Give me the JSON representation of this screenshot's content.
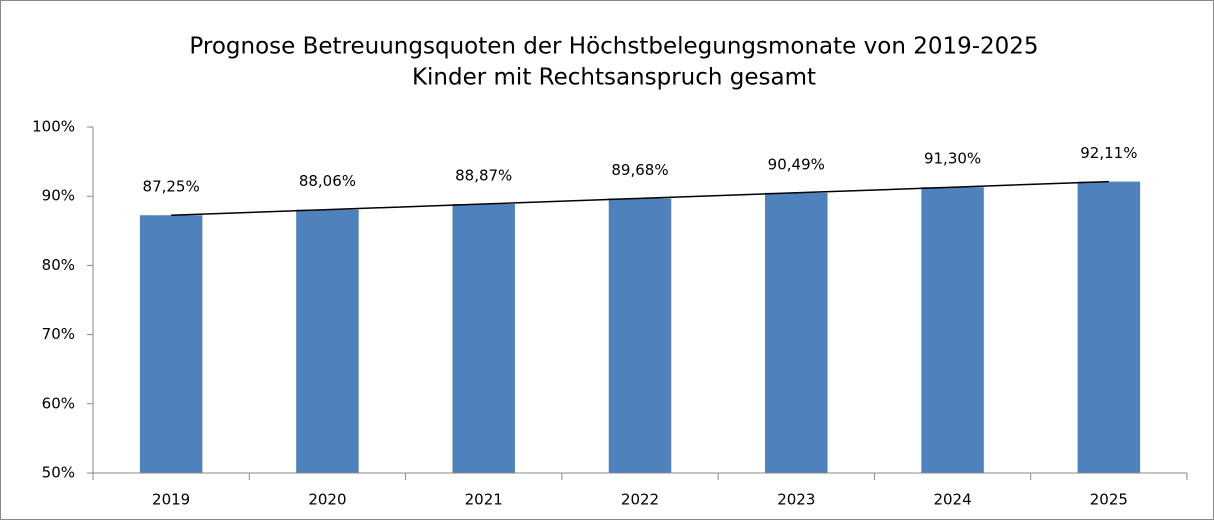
{
  "chart_data": {
    "type": "bar",
    "title": "Prognose Betreuungsquoten der Höchstbelegungsmonate von 2019-2025",
    "subtitle": "Kinder mit Rechtsanspruch gesamt",
    "categories": [
      "2019",
      "2020",
      "2021",
      "2022",
      "2023",
      "2024",
      "2025"
    ],
    "values": [
      87.25,
      88.06,
      88.87,
      89.68,
      90.49,
      91.3,
      92.11
    ],
    "value_labels": [
      "87,25%",
      "88,06%",
      "88,87%",
      "89,68%",
      "90,49%",
      "91,30%",
      "92,11%"
    ],
    "color": "#4f81bd",
    "ylim": [
      50,
      100
    ],
    "yticks": [
      {
        "value": 50,
        "label": "50%"
      },
      {
        "value": 60,
        "label": "60%"
      },
      {
        "value": 70,
        "label": "70%"
      },
      {
        "value": 80,
        "label": "80%"
      },
      {
        "value": 90,
        "label": "90%"
      },
      {
        "value": 100,
        "label": "100%"
      }
    ],
    "grid": false,
    "trendline": true
  }
}
